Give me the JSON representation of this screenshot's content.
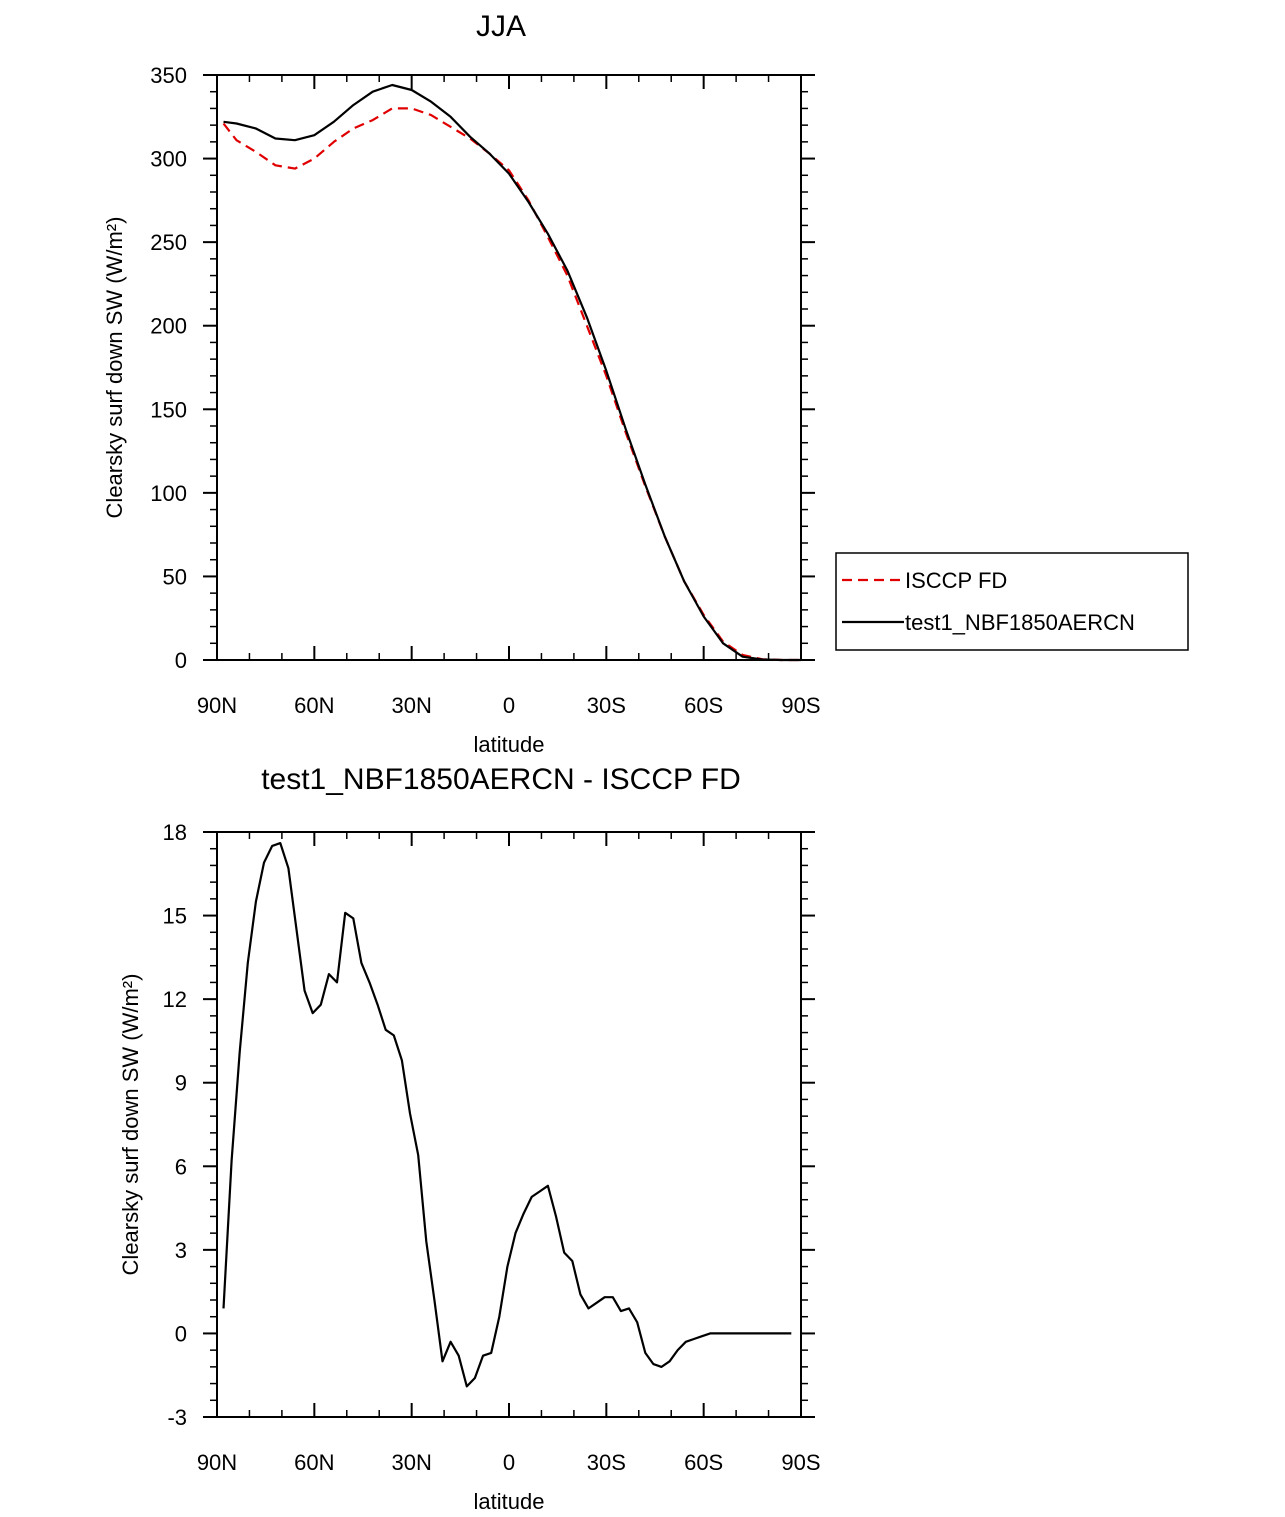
{
  "chart_data": [
    {
      "type": "line",
      "title": "JJA",
      "xlabel": "latitude",
      "ylabel": "Clearsky surf down SW (W/m²)",
      "xlim": [
        90,
        -90
      ],
      "ylim": [
        0,
        350
      ],
      "xticks": [
        90,
        60,
        30,
        0,
        -30,
        -60,
        -90
      ],
      "xtick_labels": [
        "90N",
        "60N",
        "30N",
        "0",
        "30S",
        "60S",
        "90S"
      ],
      "yticks": [
        0,
        50,
        100,
        150,
        200,
        250,
        300,
        350
      ],
      "ytick_labels": [
        "0",
        "50",
        "100",
        "150",
        "200",
        "250",
        "300",
        "350"
      ],
      "legend_position": "right",
      "series": [
        {
          "name": "ISCCP FD",
          "color": "#e00000",
          "style": "dashed",
          "x": [
            88,
            84,
            78,
            72,
            66,
            60,
            54,
            48,
            42,
            36,
            30,
            24,
            18,
            12,
            6,
            0,
            -6,
            -12,
            -18,
            -24,
            -30,
            -36,
            -42,
            -48,
            -54,
            -60,
            -66,
            -72,
            -78,
            -84,
            -90
          ],
          "y": [
            321,
            311,
            304,
            296,
            294,
            300,
            310,
            318,
            323,
            330,
            330,
            326,
            319,
            312,
            303,
            293,
            275,
            253,
            230,
            200,
            170,
            136,
            104,
            74,
            47,
            27,
            11,
            3,
            0.5,
            0,
            0
          ]
        },
        {
          "name": "test1_NBF1850AERCN",
          "color": "#000000",
          "style": "solid",
          "x": [
            88,
            84,
            78,
            72,
            66,
            60,
            54,
            48,
            42,
            36,
            30,
            24,
            18,
            12,
            6,
            0,
            -6,
            -12,
            -18,
            -24,
            -30,
            -36,
            -42,
            -48,
            -54,
            -60,
            -66,
            -72,
            -78,
            -84,
            -90
          ],
          "y": [
            322,
            321,
            318,
            312,
            311,
            314,
            322,
            332,
            340,
            344,
            341,
            334,
            325,
            313,
            303,
            291,
            274,
            255,
            233,
            205,
            173,
            138,
            105,
            74,
            47,
            26,
            10,
            2,
            0.3,
            0,
            0
          ]
        }
      ]
    },
    {
      "type": "line",
      "title": "test1_NBF1850AERCN - ISCCP FD",
      "xlabel": "latitude",
      "ylabel": "Clearsky surf down SW (W/m²)",
      "xlim": [
        90,
        -90
      ],
      "ylim": [
        -3,
        18
      ],
      "xticks": [
        90,
        60,
        30,
        0,
        -30,
        -60,
        -90
      ],
      "xtick_labels": [
        "90N",
        "60N",
        "30N",
        "0",
        "30S",
        "60S",
        "90S"
      ],
      "yticks": [
        -3,
        0,
        3,
        6,
        9,
        12,
        15,
        18
      ],
      "ytick_labels": [
        "-3",
        "0",
        "3",
        "6",
        "9",
        "12",
        "15",
        "18"
      ],
      "series": [
        {
          "name": "test1_NBF1850AERCN - ISCCP FD",
          "color": "#000000",
          "style": "solid",
          "x": [
            88,
            85.5,
            83,
            80.5,
            78,
            75.5,
            73,
            70.5,
            68,
            65.5,
            63,
            60.5,
            58,
            55.5,
            53,
            50.5,
            48,
            45.5,
            43,
            40.5,
            38,
            35.5,
            33,
            30.5,
            28,
            25.5,
            23,
            20.5,
            18,
            15.5,
            13,
            10.5,
            8,
            5.5,
            3,
            0.5,
            -2,
            -4.5,
            -7,
            -9.5,
            -12,
            -14.5,
            -17,
            -19.5,
            -22,
            -24.5,
            -27,
            -29.5,
            -32,
            -34.5,
            -37,
            -39.5,
            -42,
            -44.5,
            -47,
            -49.5,
            -52,
            -54.5,
            -57,
            -59.5,
            -62,
            -64.5,
            -67,
            -69.5,
            -72,
            -74.5,
            -77,
            -79.5,
            -82,
            -84.5,
            -87
          ],
          "y": [
            0.9,
            6.2,
            10.1,
            13.3,
            15.5,
            16.9,
            17.5,
            17.6,
            16.7,
            14.5,
            12.3,
            11.5,
            11.8,
            12.9,
            12.6,
            15.1,
            14.9,
            13.3,
            12.6,
            11.8,
            10.9,
            10.7,
            9.8,
            7.9,
            6.4,
            3.3,
            1.2,
            -1.0,
            -0.3,
            -0.8,
            -1.9,
            -1.6,
            -0.8,
            -0.7,
            0.6,
            2.4,
            3.6,
            4.3,
            4.9,
            5.1,
            5.3,
            4.2,
            2.9,
            2.6,
            1.4,
            0.9,
            1.1,
            1.3,
            1.3,
            0.8,
            0.9,
            0.4,
            -0.7,
            -1.1,
            -1.2,
            -1.0,
            -0.6,
            -0.3,
            -0.2,
            -0.1,
            0.0,
            0.0,
            0.0,
            0.0,
            0.0,
            0.0,
            0.0,
            0.0,
            0.0,
            0.0,
            0.0
          ]
        }
      ]
    }
  ]
}
